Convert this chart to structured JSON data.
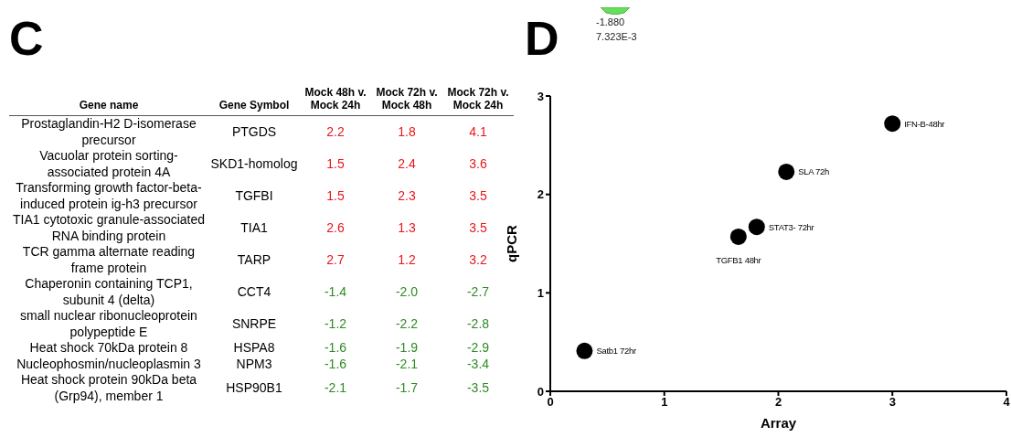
{
  "chart_data": [
    {
      "type": "heatmap",
      "title": "C",
      "annotations": [
        "Gene name",
        "Gene Symbol"
      ],
      "categories": [
        "Mock 48h v. Mock 24h",
        "Mock 72h v. Mock 48h",
        "Mock 72h v. Mock 24h"
      ],
      "y_categories": [
        "Prostaglandin-H2 D-isomerase precursor",
        "Vacuolar protein sorting-associated protein 4A",
        "Transforming growth factor-beta-induced protein ig-h3 precursor",
        "TIA1 cytotoxic granule-associated RNA binding protein",
        "TCR gamma alternate reading frame protein",
        "Chaperonin containing TCP1, subunit 4 (delta)",
        "small nuclear ribonucleoprotein polypeptide E",
        "Heat shock 70kDa protein 8",
        "Nucleophosmin/nucleoplasmin 3",
        "Heat shock protein 90kDa beta (Grp94), member 1"
      ],
      "y2_categories": [
        "PTGDS",
        "SKD1-homolog",
        "TGFBI",
        "TIA1",
        "TARP",
        "CCT4",
        "SNRPE",
        "HSPA8",
        "NPM3",
        "HSP90B1"
      ],
      "cells": [
        [
          2.2,
          1.8,
          4.1
        ],
        [
          1.5,
          2.4,
          3.6
        ],
        [
          1.5,
          2.3,
          3.5
        ],
        [
          2.6,
          1.3,
          3.5
        ],
        [
          2.7,
          1.2,
          3.2
        ],
        [
          -1.4,
          -2.0,
          -2.7
        ],
        [
          -1.2,
          -2.2,
          -2.8
        ],
        [
          -1.6,
          -1.9,
          -2.9
        ],
        [
          -1.6,
          -2.1,
          -3.4
        ],
        [
          -2.1,
          -1.7,
          -3.5
        ]
      ],
      "cell_labels": [
        [
          "2.2",
          "1.8",
          "4.1"
        ],
        [
          "1.5",
          "2.4",
          "3.6"
        ],
        [
          "1.5",
          "2.3",
          "3.5"
        ],
        [
          "2.6",
          "1.3",
          "3.5"
        ],
        [
          "2.7",
          "1.2",
          "3.2"
        ],
        [
          "-1.4",
          "-2.0",
          "-2.7"
        ],
        [
          "-1.2",
          "-2.2",
          "-2.8"
        ],
        [
          "-1.6",
          "-1.9",
          "-2.9"
        ],
        [
          "-1.6",
          "-2.1",
          "-3.4"
        ],
        [
          "-2.1",
          "-1.7",
          "-3.5"
        ]
      ]
    },
    {
      "type": "scatter",
      "title": "D",
      "xlabel": "Array",
      "ylabel": "qPCR",
      "color": "#000000",
      "marker": "circle",
      "grid": false,
      "x": [
        0.3,
        1.65,
        1.81,
        2.07,
        3.0
      ],
      "values": [
        0.41,
        1.57,
        1.67,
        2.23,
        2.72
      ],
      "xlim": [
        0,
        4
      ],
      "ylim": [
        0,
        3
      ],
      "xticks": [
        0,
        1,
        2,
        3,
        4
      ],
      "yticks": [
        0,
        1,
        2,
        3
      ],
      "annotations": [
        "-1.880",
        "7.323E-3",
        {
          "text": "Satb1 72hr",
          "x": 0.3,
          "y": 0.41
        },
        {
          "text": "TGFB1 48hr",
          "x": 1.65,
          "y": 1.57
        },
        {
          "text": "STAT3- 72hr",
          "x": 1.81,
          "y": 1.67
        },
        {
          "text": "SLA 72h",
          "x": 2.07,
          "y": 2.23
        },
        {
          "text": "IFN-B-48hr",
          "x": 3.0,
          "y": 2.72
        }
      ]
    }
  ]
}
